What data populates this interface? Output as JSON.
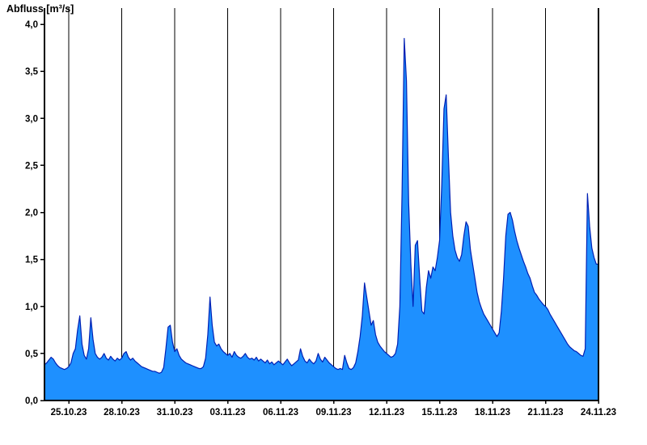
{
  "title": "Abfluss [m³/s]",
  "chart_data": {
    "type": "area",
    "title": "Abfluss [m³/s]",
    "xlabel": "",
    "ylabel": "Abfluss [m³/s]",
    "ylim": [
      0,
      4.0
    ],
    "grid": "vertical-only",
    "legend": "none",
    "colors": {
      "fill": "#1E90FF",
      "line": "#0020B4",
      "axis": "#000000"
    },
    "y_ticks": [
      {
        "v": 0.0,
        "label": "0,0"
      },
      {
        "v": 0.5,
        "label": "0,5"
      },
      {
        "v": 1.0,
        "label": "1,0"
      },
      {
        "v": 1.5,
        "label": "1,5"
      },
      {
        "v": 2.0,
        "label": "2,0"
      },
      {
        "v": 2.5,
        "label": "2,5"
      },
      {
        "v": 3.0,
        "label": "3,0"
      },
      {
        "v": 3.5,
        "label": "3,5"
      },
      {
        "v": 4.0,
        "label": "4,0"
      }
    ],
    "x_ticks": [
      {
        "day": 0,
        "label": "25.10.23"
      },
      {
        "day": 3,
        "label": "28.10.23"
      },
      {
        "day": 6,
        "label": "31.10.23"
      },
      {
        "day": 9,
        "label": "03.11.23"
      },
      {
        "day": 12,
        "label": "06.11.23"
      },
      {
        "day": 15,
        "label": "09.11.23"
      },
      {
        "day": 18,
        "label": "12.11.23"
      },
      {
        "day": 21,
        "label": "15.11.23"
      },
      {
        "day": 24,
        "label": "18.11.23"
      },
      {
        "day": 27,
        "label": "21.11.23"
      },
      {
        "day": 30,
        "label": "24.11.23"
      }
    ],
    "x_domain_days": [
      -1.375,
      30
    ],
    "series_start_day": -1.375,
    "series_step_days": 0.125,
    "series_name": "Abfluss",
    "values": [
      0.38,
      0.4,
      0.43,
      0.46,
      0.44,
      0.4,
      0.37,
      0.35,
      0.34,
      0.33,
      0.34,
      0.36,
      0.4,
      0.5,
      0.55,
      0.75,
      0.9,
      0.6,
      0.48,
      0.44,
      0.55,
      0.88,
      0.65,
      0.5,
      0.46,
      0.44,
      0.46,
      0.5,
      0.45,
      0.43,
      0.47,
      0.44,
      0.42,
      0.45,
      0.43,
      0.45,
      0.5,
      0.52,
      0.46,
      0.43,
      0.45,
      0.42,
      0.4,
      0.38,
      0.36,
      0.35,
      0.34,
      0.33,
      0.32,
      0.31,
      0.31,
      0.3,
      0.29,
      0.3,
      0.35,
      0.55,
      0.78,
      0.8,
      0.62,
      0.52,
      0.55,
      0.48,
      0.44,
      0.42,
      0.4,
      0.39,
      0.38,
      0.37,
      0.36,
      0.35,
      0.34,
      0.34,
      0.36,
      0.45,
      0.7,
      1.1,
      0.8,
      0.62,
      0.58,
      0.6,
      0.55,
      0.52,
      0.5,
      0.48,
      0.5,
      0.46,
      0.52,
      0.48,
      0.46,
      0.45,
      0.47,
      0.5,
      0.46,
      0.44,
      0.45,
      0.43,
      0.46,
      0.42,
      0.44,
      0.42,
      0.4,
      0.43,
      0.39,
      0.41,
      0.38,
      0.4,
      0.42,
      0.4,
      0.38,
      0.41,
      0.44,
      0.4,
      0.37,
      0.39,
      0.41,
      0.43,
      0.55,
      0.47,
      0.42,
      0.4,
      0.44,
      0.41,
      0.39,
      0.42,
      0.5,
      0.44,
      0.41,
      0.46,
      0.43,
      0.4,
      0.38,
      0.36,
      0.34,
      0.33,
      0.34,
      0.33,
      0.48,
      0.4,
      0.34,
      0.33,
      0.35,
      0.4,
      0.52,
      0.68,
      0.9,
      1.25,
      1.1,
      0.95,
      0.8,
      0.85,
      0.7,
      0.62,
      0.58,
      0.55,
      0.52,
      0.5,
      0.48,
      0.46,
      0.47,
      0.5,
      0.6,
      1.0,
      2.2,
      3.85,
      3.4,
      2.1,
      1.45,
      1.0,
      1.65,
      1.7,
      1.3,
      0.95,
      0.92,
      1.2,
      1.38,
      1.3,
      1.42,
      1.38,
      1.52,
      1.7,
      2.3,
      3.1,
      3.25,
      2.6,
      2.0,
      1.75,
      1.6,
      1.52,
      1.48,
      1.55,
      1.75,
      1.9,
      1.85,
      1.6,
      1.45,
      1.3,
      1.15,
      1.05,
      0.98,
      0.92,
      0.88,
      0.84,
      0.8,
      0.76,
      0.72,
      0.68,
      0.72,
      0.95,
      1.3,
      1.75,
      1.98,
      2.0,
      1.92,
      1.8,
      1.7,
      1.62,
      1.55,
      1.48,
      1.42,
      1.35,
      1.3,
      1.22,
      1.15,
      1.12,
      1.08,
      1.05,
      1.02,
      1.0,
      0.97,
      0.92,
      0.88,
      0.84,
      0.8,
      0.76,
      0.72,
      0.68,
      0.64,
      0.6,
      0.57,
      0.55,
      0.53,
      0.52,
      0.5,
      0.48,
      0.47,
      0.55,
      2.2,
      1.85,
      1.62,
      1.52,
      1.45,
      1.45
    ]
  }
}
